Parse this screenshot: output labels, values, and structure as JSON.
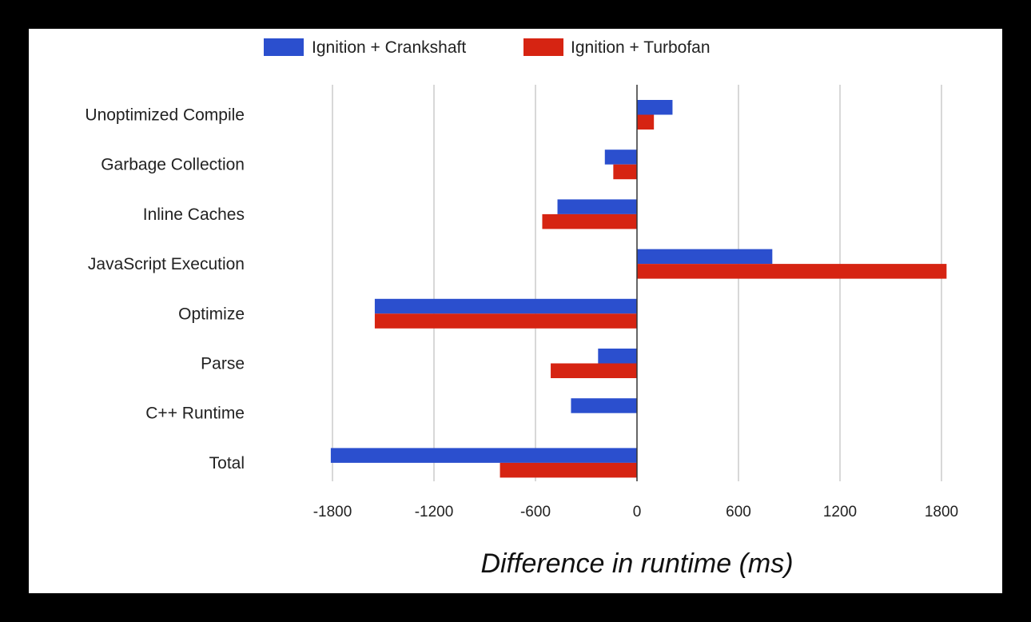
{
  "chart_data": {
    "type": "bar",
    "orientation": "horizontal",
    "categories": [
      "Unoptimized Compile",
      "Garbage Collection",
      "Inline Caches",
      "JavaScript Execution",
      "Optimize",
      "Parse",
      "C++ Runtime",
      "Total"
    ],
    "series": [
      {
        "name": "Ignition + Crankshaft",
        "color": "#2b4fce",
        "values": [
          210,
          -190,
          -470,
          800,
          -1550,
          -230,
          -390,
          -1810
        ]
      },
      {
        "name": "Ignition + Turbofan",
        "color": "#d62412",
        "values": [
          100,
          -140,
          -560,
          1830,
          -1550,
          -510,
          0,
          -810
        ]
      }
    ],
    "xlim": [
      -1800,
      1800
    ],
    "xticks": [
      -1800,
      -1200,
      -600,
      0,
      600,
      1200,
      1800
    ],
    "xticklabels": [
      "-1800",
      "-1200",
      "-600",
      "0",
      "600",
      "1200",
      "1800"
    ],
    "xlabel": "Difference in runtime (ms)",
    "ylabel": "",
    "title": "",
    "grid": true,
    "legend_position": "top"
  }
}
